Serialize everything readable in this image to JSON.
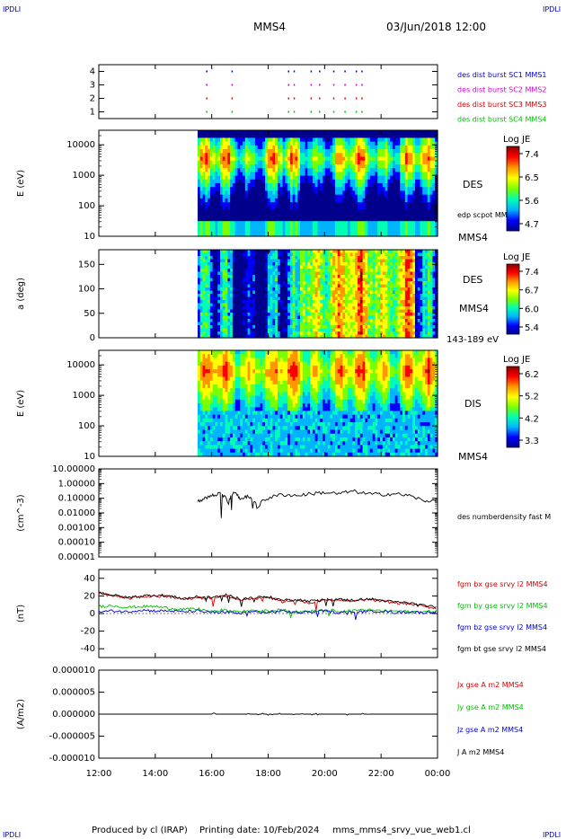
{
  "corner_label": "IPDLI",
  "title": "MMS4",
  "date": "03/Jun/2018 12:00",
  "footer": {
    "producer": "Produced by cl (IRAP)",
    "printing": "Printing date: 10/Feb/2024",
    "file": "mms_mms4_srvy_vue_web1.cl"
  },
  "colors": {
    "spectrogram": [
      "#00008c",
      "#0000ff",
      "#00b4ff",
      "#00ffb4",
      "#7aff00",
      "#ffff00",
      "#ff9600",
      "#ff0000",
      "#8c0000"
    ],
    "black": "#000000",
    "red": "#d70000",
    "green": "#00c000",
    "blue": "#0000d0",
    "magenta": "#d000d0"
  },
  "chart_data": [
    {
      "type": "scatter",
      "panel": "burst-flags",
      "yticks": [
        "1",
        "2",
        "3",
        "4"
      ],
      "ylim": [
        0.5,
        4.5
      ],
      "series": [
        {
          "name": "des dist burst SC1 MMS1",
          "color": "#0000d0",
          "y": 4
        },
        {
          "name": "des dist burst SC2 MMS2",
          "color": "#d000d0",
          "y": 3
        },
        {
          "name": "des dist burst SC3 MMS3",
          "color": "#d70000",
          "y": 2
        },
        {
          "name": "des dist burst SC4 MMS4",
          "color": "#00c000",
          "y": 1
        }
      ],
      "burst_times_h": [
        15.8,
        16.7,
        18.7,
        18.9,
        19.5,
        19.8,
        20.3,
        20.7,
        21.1,
        21.3
      ]
    },
    {
      "type": "heatmap",
      "panel": "des-energy",
      "ylabel": "E (eV)",
      "yscale": "log",
      "ylim": [
        10,
        30000
      ],
      "yticks": [
        "10",
        "100",
        "1000",
        "10000"
      ],
      "data_start_h": 15.5,
      "right_label": "DES",
      "right_sub": "edp scpot MMS4",
      "bottom_label": "MMS4",
      "colorbar": {
        "title": "Log JE",
        "ticks": [
          "7.4",
          "6.5",
          "5.6",
          "4.7"
        ]
      }
    },
    {
      "type": "heatmap",
      "panel": "des-pitch",
      "ylabel": "a (deg)",
      "ylim": [
        0,
        180
      ],
      "yticks": [
        "0",
        "50",
        "100",
        "150"
      ],
      "data_start_h": 15.5,
      "right_label": "DES",
      "right_sub": "MMS4",
      "bottom_label": "143-189 eV",
      "colorbar": {
        "title": "Log JE",
        "ticks": [
          "7.4",
          "6.7",
          "6.0",
          "5.4"
        ]
      }
    },
    {
      "type": "heatmap",
      "panel": "dis-energy",
      "ylabel": "E (eV)",
      "yscale": "log",
      "ylim": [
        10,
        30000
      ],
      "yticks": [
        "10",
        "100",
        "1000",
        "10000"
      ],
      "data_start_h": 15.5,
      "right_label": "DIS",
      "bottom_label": "MMS4",
      "colorbar": {
        "title": "Log JE",
        "ticks": [
          "6.2",
          "5.2",
          "4.2",
          "3.3"
        ]
      }
    },
    {
      "type": "line",
      "panel": "density",
      "ylabel": "(cm^-3)",
      "yscale": "log",
      "ylim": [
        1e-05,
        10
      ],
      "yticks": [
        "10.00000",
        "1.00000",
        "0.10000",
        "0.01000",
        "0.00100",
        "0.00010",
        "0.00001"
      ],
      "series": [
        {
          "name": "des numberdensity fast M",
          "color": "#000000",
          "x": [
            15.5,
            15.8,
            16.0,
            16.3,
            16.6,
            16.8,
            17.0,
            17.3,
            17.6,
            18.0,
            18.5,
            19.0,
            19.5,
            20.0,
            20.5,
            21.0,
            21.5,
            22.0,
            22.5,
            23.0,
            23.5,
            24.0
          ],
          "y": [
            0.06,
            0.1,
            0.15,
            0.2,
            0.05,
            0.3,
            0.08,
            0.15,
            0.02,
            0.1,
            0.18,
            0.15,
            0.2,
            0.25,
            0.2,
            0.3,
            0.2,
            0.18,
            0.2,
            0.15,
            0.06,
            0.08
          ]
        }
      ]
    },
    {
      "type": "line",
      "panel": "magnetic-field",
      "ylabel": "(nT)",
      "ylim": [
        -50,
        50
      ],
      "yticks": [
        "40",
        "20",
        "0",
        "-20",
        "-40"
      ],
      "x": [
        12.0,
        12.5,
        13.0,
        13.5,
        14.0,
        14.5,
        15.0,
        15.5,
        16.0,
        16.5,
        17.0,
        17.5,
        18.0,
        18.5,
        19.0,
        19.5,
        20.0,
        20.5,
        21.0,
        21.5,
        22.0,
        22.5,
        23.0,
        23.5,
        24.0
      ],
      "series": [
        {
          "name": "fgm bx gse srvy l2 MMS4",
          "color": "#d70000",
          "y": [
            23,
            20,
            17,
            19,
            20,
            19,
            16,
            18,
            17,
            20,
            16,
            17,
            18,
            14,
            15,
            12,
            16,
            15,
            14,
            16,
            14,
            12,
            11,
            8,
            6
          ]
        },
        {
          "name": "fgm by gse srvy l2 MMS4",
          "color": "#00c000",
          "y": [
            8,
            9,
            7,
            8,
            8,
            6,
            5,
            5,
            3,
            4,
            2,
            4,
            3,
            4,
            2,
            3,
            4,
            3,
            3,
            4,
            3,
            3,
            2,
            2,
            3
          ]
        },
        {
          "name": "fgm bz gse srvy l2 MMS4",
          "color": "#0000d0",
          "y": [
            2,
            3,
            2,
            4,
            3,
            3,
            2,
            3,
            1,
            2,
            0,
            2,
            1,
            3,
            1,
            2,
            3,
            1,
            2,
            2,
            3,
            1,
            2,
            1,
            2
          ]
        },
        {
          "name": "fgm bt gse srvy l2 MMS4",
          "color": "#000000",
          "y": [
            24,
            21,
            18,
            20,
            21,
            20,
            17,
            19,
            18,
            21,
            17,
            18,
            19,
            15,
            16,
            14,
            17,
            16,
            15,
            17,
            15,
            13,
            12,
            9,
            7
          ]
        }
      ]
    },
    {
      "type": "line",
      "panel": "current-density",
      "ylabel": "(A/m2)",
      "ylim": [
        -1e-05,
        1e-05
      ],
      "yticks": [
        "0.000010",
        "0.000005",
        "0.000000",
        "-0.000005",
        "-0.000010"
      ],
      "series": [
        {
          "name": "Jx gse A m2 MMS4",
          "color": "#d70000"
        },
        {
          "name": "Jy gse A m2 MMS4",
          "color": "#00c000"
        },
        {
          "name": "Jz gse A m2 MMS4",
          "color": "#0000d0"
        },
        {
          "name": "J A m2 MMS4",
          "color": "#000000"
        }
      ]
    }
  ],
  "xaxis": {
    "ticks": [
      "12:00",
      "14:00",
      "16:00",
      "18:00",
      "20:00",
      "22:00",
      "00:00"
    ],
    "range_h": [
      12,
      24
    ]
  }
}
